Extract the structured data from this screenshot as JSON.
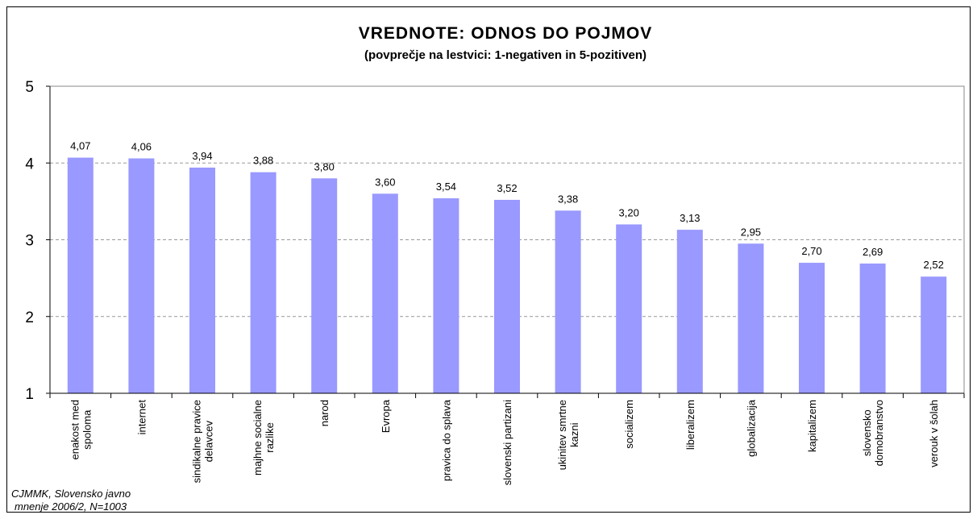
{
  "chart_data": {
    "type": "bar",
    "title": "VREDNOTE: ODNOS DO POJMOV",
    "subtitle": "(povprečje na lestvici: 1-negativen in 5-pozitiven)",
    "categories": [
      [
        "enakost med",
        "spoloma"
      ],
      [
        "internet"
      ],
      [
        "sindikalne pravice",
        "delavcev"
      ],
      [
        "majhne socialne",
        "razlike"
      ],
      [
        "narod"
      ],
      [
        "Evropa"
      ],
      [
        "pravica do splava"
      ],
      [
        "slovenski partizani"
      ],
      [
        "ukinitev smrtne",
        "kazni"
      ],
      [
        "socializem"
      ],
      [
        "liberalizem"
      ],
      [
        "globalizacija"
      ],
      [
        "kapitalizem"
      ],
      [
        "slovensko",
        "domobranstvo"
      ],
      [
        "verouk v šolah"
      ]
    ],
    "values": [
      4.07,
      4.06,
      3.94,
      3.88,
      3.8,
      3.6,
      3.54,
      3.52,
      3.38,
      3.2,
      3.13,
      2.95,
      2.7,
      2.69,
      2.52
    ],
    "value_labels": [
      "4,07",
      "4,06",
      "3,94",
      "3,88",
      "3,80",
      "3,60",
      "3,54",
      "3,52",
      "3,38",
      "3,20",
      "3,13",
      "2,95",
      "2,70",
      "2,69",
      "2,52"
    ],
    "color": "#9999ff",
    "ylim": [
      1,
      5
    ],
    "yticks": [
      1,
      2,
      3,
      4,
      5
    ],
    "grid": true,
    "source": [
      "CJMMK, Slovensko javno",
      "mnenje 2006/2, N=1003"
    ]
  }
}
